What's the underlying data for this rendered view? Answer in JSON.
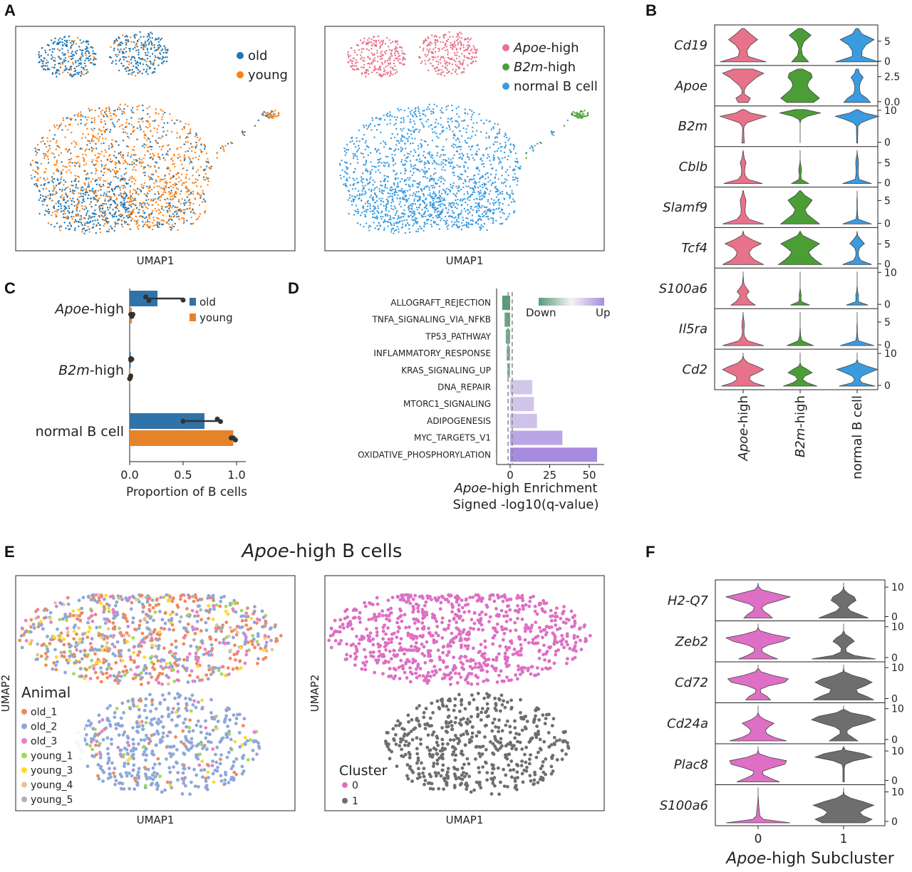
{
  "panel_labels": [
    "A",
    "B",
    "C",
    "D",
    "E",
    "F"
  ],
  "colors": {
    "old": "#1f77b4",
    "young": "#ff7f0e",
    "apoe": "#e8728a",
    "b2m": "#4a9e35",
    "normal": "#3a9be0",
    "cluster0": "#dd6fc4",
    "cluster1": "#6e6e6e",
    "bar_old": "#2f73a8",
    "bar_young": "#e5832b",
    "enrich_down": "#5b9a78",
    "enrich_up": "#a68be0"
  },
  "panelA": {
    "left": {
      "xlabel": "UMAP1",
      "legend": [
        "old",
        "young"
      ]
    },
    "right": {
      "xlabel": "UMAP1",
      "legend": [
        {
          "em": "Apoe",
          "rest": "-high"
        },
        {
          "em": "B2m",
          "rest": "-high"
        },
        {
          "em": "",
          "rest": "normal B cell"
        }
      ]
    }
  },
  "chart_data": [
    {
      "panel": "A-left",
      "type": "scatter",
      "title": "",
      "xlabel": "UMAP1",
      "ylabel": "",
      "legend": [
        "old",
        "young"
      ],
      "legend_position": "top-right"
    },
    {
      "panel": "A-right",
      "type": "scatter",
      "title": "",
      "xlabel": "UMAP1",
      "ylabel": "",
      "legend": [
        "Apoe-high",
        "B2m-high",
        "normal B cell"
      ],
      "legend_position": "top-right"
    },
    {
      "panel": "B",
      "type": "violin",
      "genes": [
        "Cd19",
        "Apoe",
        "B2m",
        "Cblb",
        "Slamf9",
        "Tcf4",
        "S100a6",
        "Il5ra",
        "Cd2"
      ],
      "groups": [
        "Apoe-high",
        "B2m-high",
        "normal B cell"
      ],
      "group_labels": [
        {
          "em": "Apoe",
          "rest": "-high"
        },
        {
          "em": "B2m",
          "rest": "-high"
        },
        {
          "em": "",
          "rest": "normal B cell"
        }
      ],
      "ymax": [
        8,
        3.2,
        10,
        8,
        7,
        8,
        10,
        7,
        10
      ],
      "yticks": [
        [
          "5",
          "0"
        ],
        [
          "2.5",
          "0.0"
        ],
        [
          "10",
          "0"
        ],
        [
          "5",
          "0"
        ],
        [
          "5",
          "0"
        ],
        [
          "5",
          "0"
        ],
        [
          "10",
          "0"
        ],
        [
          "5",
          "0"
        ],
        [
          "10",
          "0"
        ]
      ],
      "ytick_values": [
        [
          5,
          0
        ],
        [
          2.5,
          0
        ],
        [
          10,
          0
        ],
        [
          5,
          0
        ],
        [
          5,
          0
        ],
        [
          5,
          0
        ],
        [
          10,
          0
        ],
        [
          5,
          0
        ],
        [
          10,
          0
        ]
      ],
      "widths": [
        [
          [
            0.95,
            0.2,
            0.15,
            0.3,
            0.6,
            0.3,
            0.05
          ],
          [
            0.35,
            0.1,
            0.05,
            0.15,
            0.45,
            0.08
          ],
          [
            0.9,
            0.2,
            0.2,
            0.35,
            0.7,
            0.2,
            0.05
          ]
        ],
        [
          [
            0.2,
            0.3,
            0.05,
            0.05,
            0.15,
            0.35,
            0.55,
            0.85,
            0.4
          ],
          [
            0.55,
            0.8,
            0.6,
            0.4,
            0.3,
            0.35,
            0.5,
            0.45,
            0.1
          ],
          [
            0.55,
            0.4,
            0.15,
            0.1,
            0.1,
            0.15,
            0.25,
            0.1,
            0.05
          ]
        ],
        [
          [
            0.05,
            0.04,
            0.03,
            0.03,
            0.02,
            0.04,
            0.15,
            0.55,
            0.95,
            0.3,
            0.05
          ],
          [
            0,
            0,
            0,
            0,
            0,
            0,
            0,
            0.05,
            0.3,
            0.85,
            0.2
          ],
          [
            0.02,
            0.02,
            0.02,
            0.03,
            0.03,
            0.03,
            0.15,
            0.5,
            0.9,
            0.3,
            0.02
          ]
        ],
        [
          [
            0.8,
            0.2,
            0.08,
            0.06,
            0.08,
            0.12,
            0.05,
            0.02,
            0
          ],
          [
            0.35,
            0.05,
            0.03,
            0.06,
            0.04,
            0.01,
            0,
            0,
            0
          ],
          [
            0.6,
            0.08,
            0.05,
            0.04,
            0.05,
            0.06,
            0.04,
            0.01,
            0
          ]
        ],
        [
          [
            0.85,
            0.25,
            0.1,
            0.08,
            0.1,
            0.12,
            0.05,
            0.01
          ],
          [
            0.8,
            0.55,
            0.3,
            0.2,
            0.35,
            0.5,
            0.2,
            0.02
          ],
          [
            0.6,
            0.05,
            0.02,
            0.01,
            0.01,
            0.01,
            0,
            0
          ]
        ],
        [
          [
            0.85,
            0.5,
            0.3,
            0.25,
            0.4,
            0.75,
            0.35,
            0.05,
            0
          ],
          [
            0.9,
            0.65,
            0.45,
            0.35,
            0.55,
            0.8,
            0.45,
            0.1,
            0
          ],
          [
            0.6,
            0.15,
            0.06,
            0.05,
            0.1,
            0.3,
            0.15,
            0.02,
            0
          ]
        ],
        [
          [
            0.5,
            0.3,
            0.18,
            0.12,
            0.25,
            0.15,
            0.05,
            0.02,
            0.01,
            0,
            0
          ],
          [
            0.4,
            0.06,
            0.03,
            0.04,
            0.02,
            0,
            0,
            0,
            0,
            0,
            0
          ],
          [
            0.45,
            0.06,
            0.05,
            0.06,
            0.02,
            0.01,
            0,
            0,
            0,
            0,
            0
          ]
        ],
        [
          [
            0.85,
            0.18,
            0.05,
            0.03,
            0.05,
            0.04,
            0.01,
            0
          ],
          [
            0.55,
            0.08,
            0.02,
            0.01,
            0,
            0,
            0,
            0
          ],
          [
            0.7,
            0.06,
            0.02,
            0.01,
            0.01,
            0,
            0,
            0
          ]
        ],
        [
          [
            0.9,
            0.45,
            0.25,
            0.3,
            0.6,
            0.85,
            0.55,
            0.2,
            0.05,
            0,
            0
          ],
          [
            0.7,
            0.3,
            0.1,
            0.2,
            0.5,
            0.3,
            0.05,
            0,
            0,
            0,
            0
          ],
          [
            0.75,
            0.2,
            0.1,
            0.2,
            0.5,
            0.85,
            0.4,
            0.05,
            0,
            0,
            0
          ]
        ]
      ]
    },
    {
      "panel": "C",
      "type": "bar",
      "orientation": "horizontal",
      "categories": [
        "Apoe-high",
        "B2m-high",
        "normal B cell"
      ],
      "category_labels": [
        {
          "em": "Apoe",
          "rest": "-high"
        },
        {
          "em": "B2m",
          "rest": "-high"
        },
        {
          "em": "",
          "rest": "normal B cell"
        }
      ],
      "series": [
        {
          "name": "old",
          "values": [
            0.26,
            0.01,
            0.7
          ],
          "points": [
            [
              0.15,
              0.18,
              0.5
            ],
            [
              0.01,
              0.01,
              0.02
            ],
            [
              0.5,
              0.82,
              0.85
            ]
          ]
        },
        {
          "name": "young",
          "values": [
            0.02,
            0.005,
            0.97
          ],
          "points": [
            [
              0.01,
              0.02,
              0.03
            ],
            [
              0.0,
              0.005,
              0.01
            ],
            [
              0.95,
              0.97,
              0.99
            ]
          ]
        }
      ],
      "xlabel": "Proportion of B cells",
      "xlim": [
        0,
        1.05
      ],
      "xticks": [
        "0.0",
        "0.5",
        "1.0"
      ],
      "xtick_values": [
        0,
        0.5,
        1.0
      ],
      "legend": [
        "old",
        "young"
      ],
      "legend_position": "top-right"
    },
    {
      "panel": "D",
      "type": "bar",
      "orientation": "horizontal",
      "categories": [
        "ALLOGRAFT_REJECTION",
        "TNFA_SIGNALING_VIA_NFKB",
        "TP53_PATHWAY",
        "INFLAMMATORY_RESPONSE",
        "KRAS_SIGNALING_UP",
        "DNA_REPAIR",
        "MTORC1_SIGNALING",
        "ADIPOGENESIS",
        "MYC_TARGETS_V1",
        "OXIDATIVE_PHOSPHORYLATION"
      ],
      "values": [
        -5,
        -3.5,
        -2.8,
        -2.2,
        -1.8,
        14,
        15,
        17,
        33,
        55
      ],
      "xlabel_em": "Apoe",
      "xlabel_rest": "-high Enrichment",
      "xlabel2": "Signed -log10(q-value)",
      "xlim": [
        -8,
        60
      ],
      "xticks": [
        "0",
        "25",
        "50"
      ],
      "xtick_values": [
        0,
        25,
        50
      ],
      "colorbar_labels": [
        "Down",
        "Up"
      ],
      "reference_lines": [
        -1.3,
        1.3
      ]
    },
    {
      "panel": "E-left",
      "type": "scatter",
      "xlabel": "UMAP1",
      "ylabel": "UMAP2",
      "legend_title": "Animal",
      "legend": [
        "old_1",
        "old_2",
        "old_3",
        "young_1",
        "young_3",
        "young_4",
        "young_5"
      ],
      "legend_colors": [
        "#f08a5d",
        "#8ea8d8",
        "#e87fc9",
        "#a6d854",
        "#ffd92f",
        "#e5c494",
        "#b3b3b3"
      ],
      "legend_position": "bottom-left"
    },
    {
      "panel": "E-right",
      "type": "scatter",
      "xlabel": "UMAP1",
      "ylabel": "UMAP2",
      "legend_title": "Cluster",
      "legend": [
        "0",
        "1"
      ],
      "legend_position": "bottom-left"
    },
    {
      "panel": "F",
      "type": "violin",
      "genes": [
        "H2-Q7",
        "Zeb2",
        "Cd72",
        "Cd24a",
        "Plac8",
        "S100a6"
      ],
      "groups": [
        "0",
        "1"
      ],
      "xlabel_em": "Apoe",
      "xlabel_rest": "-high Subcluster",
      "ymax": [
        11,
        10.5,
        10.5,
        10.5,
        11,
        11
      ],
      "yticks": [
        [
          "10",
          "0"
        ],
        [
          "10",
          "0"
        ],
        [
          "10",
          "0"
        ],
        [
          "10",
          "0"
        ],
        [
          "10",
          "0"
        ],
        [
          "10",
          "0"
        ]
      ],
      "ytick_values": [
        [
          10,
          0
        ],
        [
          10,
          0
        ],
        [
          10,
          0
        ],
        [
          10,
          0
        ],
        [
          10,
          0
        ],
        [
          10,
          0
        ]
      ],
      "widths": [
        [
          [
            0.4,
            0.3,
            0.15,
            0.1,
            0.25,
            0.6,
            0.9,
            0.5,
            0.1,
            0.01,
            0
          ],
          [
            0.7,
            0.45,
            0.2,
            0.1,
            0.2,
            0.35,
            0.3,
            0.12,
            0.02,
            0,
            0
          ]
        ],
        [
          [
            0.55,
            0.3,
            0.12,
            0.1,
            0.3,
            0.7,
            0.9,
            0.4,
            0.05,
            0,
            0
          ],
          [
            0.9,
            0.3,
            0.08,
            0.06,
            0.15,
            0.3,
            0.2,
            0.05,
            0,
            0,
            0
          ]
        ],
        [
          [
            0.35,
            0.25,
            0.08,
            0.06,
            0.3,
            0.75,
            0.85,
            0.4,
            0.08,
            0,
            0
          ],
          [
            0.85,
            0.65,
            0.4,
            0.35,
            0.6,
            0.8,
            0.6,
            0.25,
            0.02,
            0,
            0
          ]
        ],
        [
          [
            0.8,
            0.45,
            0.25,
            0.2,
            0.3,
            0.45,
            0.2,
            0.05,
            0,
            0,
            0
          ],
          [
            0.4,
            0.25,
            0.1,
            0.1,
            0.25,
            0.6,
            0.9,
            0.7,
            0.2,
            0,
            0
          ]
        ],
        [
          [
            0.6,
            0.35,
            0.15,
            0.12,
            0.4,
            0.75,
            0.8,
            0.3,
            0.03,
            0,
            0
          ],
          [
            0.02,
            0.02,
            0.02,
            0.02,
            0.02,
            0.05,
            0.3,
            0.8,
            0.55,
            0.05,
            0
          ]
        ],
        [
          [
            0.9,
            0.15,
            0.05,
            0.04,
            0.03,
            0.02,
            0.01,
            0.005,
            0,
            0,
            0
          ],
          [
            0.6,
            0.8,
            0.55,
            0.45,
            0.6,
            0.85,
            0.55,
            0.2,
            0.02,
            0,
            0
          ]
        ]
      ]
    }
  ],
  "panelE_title_em": "Apoe",
  "panelE_title_rest": "-high B cells"
}
